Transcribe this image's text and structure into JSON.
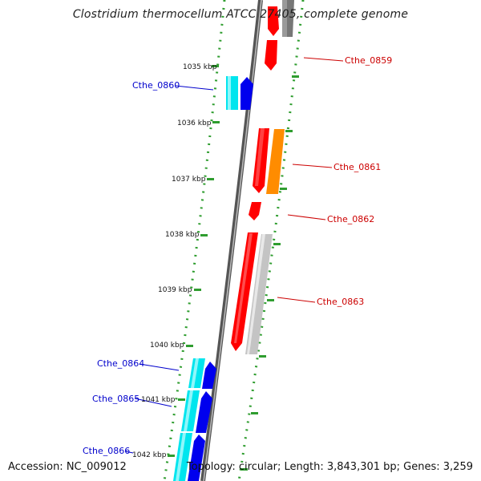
{
  "title": "Clostridium thermocellum ATCC 27405, complete genome",
  "footer": {
    "accession": "Accession: NC_009012",
    "topology": "Topology: circular; Length: 3,843,301 bp; Genes: 3,259"
  },
  "scale_labels": [
    "1035 kbp",
    "1036 kbp",
    "1037 kbp",
    "1038 kbp",
    "1039 kbp",
    "1040 kbp",
    "1041 kbp",
    "1042 kbp"
  ],
  "colors": {
    "forward_red": "#ff0000",
    "reverse_blue": "#0000ee",
    "cyan": "#00e5ee",
    "orange": "#ff8c00",
    "gray": "#777777",
    "light_gray": "#c4c4c4",
    "dotted_green": "#2f9d2f",
    "forward_label": "#cc0000",
    "reverse_label": "#0000cc"
  },
  "genes_right": [
    {
      "label": "Cthe_0859",
      "color": "forward_red"
    },
    {
      "label": "Cthe_0861",
      "color": "forward_red"
    },
    {
      "label": "Cthe_0862",
      "color": "forward_red"
    },
    {
      "label": "Cthe_0863",
      "color": "forward_red"
    }
  ],
  "genes_left": [
    {
      "label": "Cthe_0860",
      "color": "reverse_blue"
    },
    {
      "label": "Cthe_0864",
      "color": "reverse_blue"
    },
    {
      "label": "Cthe_0865",
      "color": "reverse_blue"
    },
    {
      "label": "Cthe_0866",
      "color": "reverse_blue"
    }
  ]
}
